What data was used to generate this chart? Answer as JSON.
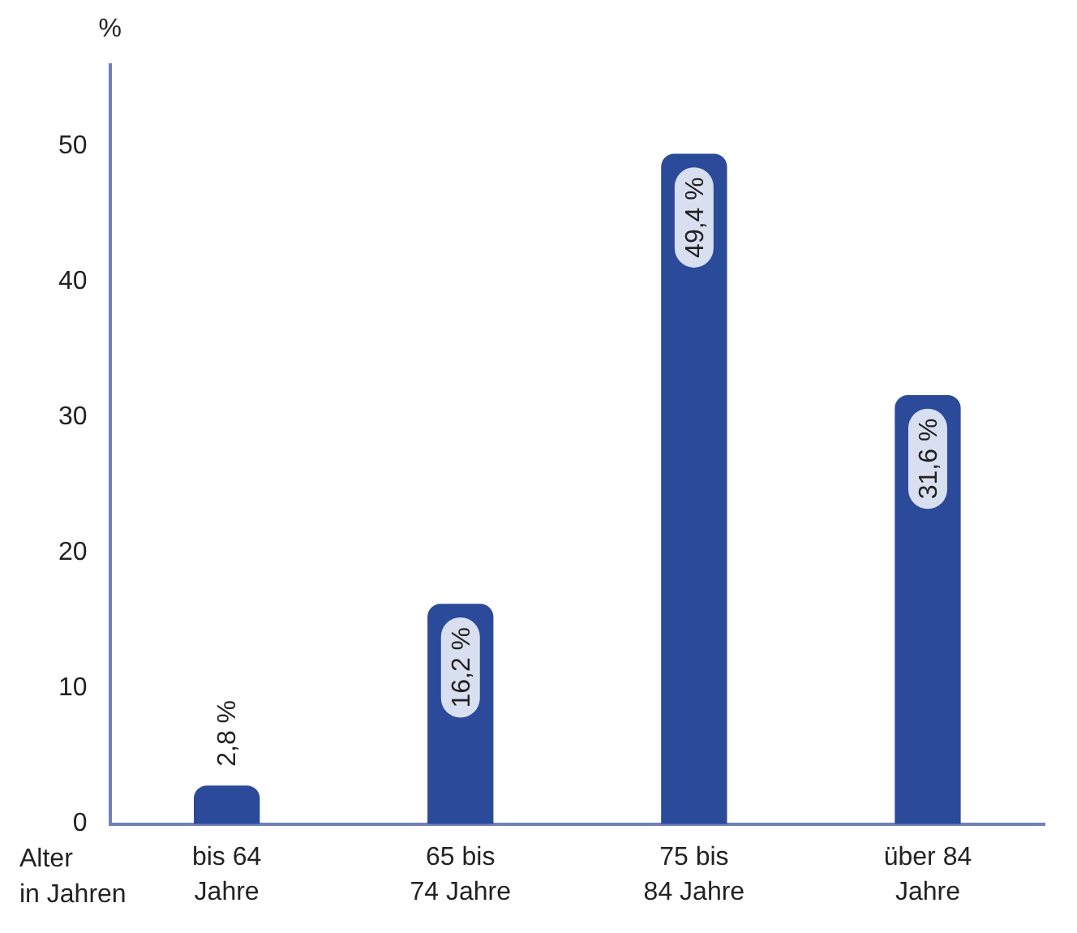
{
  "chart_data": {
    "type": "bar",
    "ylabel": "%",
    "xlabel": "Alter\nin Jahren",
    "categories": [
      "bis 64\nJahre",
      "65 bis\n74 Jahre",
      "75 bis\n84 Jahre",
      "über 84\nJahre"
    ],
    "values": [
      2.8,
      16.2,
      49.4,
      31.6
    ],
    "value_labels": [
      "2,8 %",
      "16,2 %",
      "49,4 %",
      "31,6 %"
    ],
    "color": "#2b4a9a",
    "ylim": [
      0,
      56
    ],
    "yticks": [
      0,
      10,
      20,
      30,
      40,
      50
    ],
    "grid": false,
    "legend": false
  }
}
